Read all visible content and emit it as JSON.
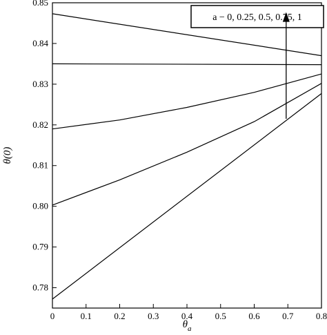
{
  "chart_data": {
    "type": "line",
    "xlabel": "θ",
    "xlabel_sub": "a",
    "ylabel": "θ(0)",
    "xlim": [
      0,
      0.8
    ],
    "ylim": [
      0.775,
      0.85
    ],
    "xticks": [
      0,
      0.1,
      0.2,
      0.3,
      0.4,
      0.5,
      0.6,
      0.7,
      0.8
    ],
    "xtick_labels": [
      "0",
      "0.1",
      "0.2",
      "0.3",
      "0.4",
      "0.5",
      "0.6",
      "0.7",
      "0.8"
    ],
    "yticks": [
      0.78,
      0.79,
      0.8,
      0.81,
      0.82,
      0.83,
      0.84,
      0.85
    ],
    "ytick_labels": [
      "0.78",
      "0.79",
      "0.80",
      "0.81",
      "0.82",
      "0.83",
      "0.84",
      "0.85"
    ],
    "grid": false,
    "legend": "none",
    "series": [
      {
        "x": [
          0,
          0.8
        ],
        "y": [
          0.8473,
          0.837
        ]
      },
      {
        "x": [
          0,
          0.8
        ],
        "y": [
          0.835,
          0.8348
        ]
      },
      {
        "x": [
          0,
          0.2,
          0.4,
          0.6,
          0.8
        ],
        "y": [
          0.819,
          0.8212,
          0.8243,
          0.828,
          0.8325
        ]
      },
      {
        "x": [
          0,
          0.2,
          0.4,
          0.6,
          0.8
        ],
        "y": [
          0.8003,
          0.8065,
          0.8133,
          0.8208,
          0.8302
        ]
      },
      {
        "x": [
          0,
          0.8
        ],
        "y": [
          0.7772,
          0.8277
        ]
      }
    ],
    "annotations": [
      {
        "text": "a − 0, 0.25, 0.5, 0.75, 1",
        "arrow_from": [
          0.695,
          0.8215
        ],
        "arrow_to": [
          0.695,
          0.847
        ]
      }
    ]
  }
}
